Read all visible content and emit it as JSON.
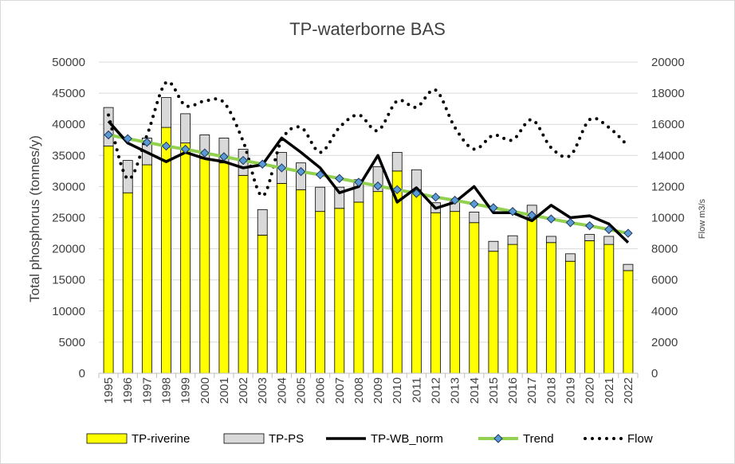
{
  "chart_data": {
    "type": "bar",
    "title": "TP-waterborne BAS",
    "ylabel": "Total phosphorus (tonnes/y)",
    "y2label": "Flow m3/s",
    "ylim": [
      0,
      50000
    ],
    "y2lim": [
      0,
      20000
    ],
    "yticks": [
      "0",
      "5000",
      "10000",
      "15000",
      "20000",
      "25000",
      "30000",
      "35000",
      "40000",
      "45000",
      "50000"
    ],
    "y2ticks": [
      "0",
      "2000",
      "4000",
      "6000",
      "8000",
      "10000",
      "12000",
      "14000",
      "16000",
      "18000",
      "20000"
    ],
    "grid": "horizontal",
    "legend_position": "bottom",
    "categories": [
      "1995",
      "1996",
      "1997",
      "1998",
      "1999",
      "2000",
      "2001",
      "2002",
      "2003",
      "2004",
      "2005",
      "2006",
      "2007",
      "2008",
      "2009",
      "2010",
      "2011",
      "2012",
      "2013",
      "2014",
      "2015",
      "2016",
      "2017",
      "2018",
      "2019",
      "2020",
      "2021",
      "2022"
    ],
    "series": [
      {
        "name": "TP-riverine",
        "kind": "stacked-bar",
        "color": "#ffff00",
        "values": [
          36500,
          29000,
          33500,
          39500,
          37000,
          34500,
          33800,
          31800,
          22200,
          30500,
          29500,
          26000,
          26500,
          27500,
          29200,
          32500,
          29500,
          25800,
          26000,
          24200,
          19600,
          20700,
          25000,
          21000,
          18000,
          21300,
          20700,
          16500
        ]
      },
      {
        "name": "TP-PS",
        "kind": "stacked-bar",
        "color": "#d9d9d9",
        "values": [
          6200,
          5200,
          4300,
          4800,
          4700,
          3800,
          4000,
          4200,
          4100,
          5000,
          4300,
          3900,
          3400,
          3600,
          4000,
          3000,
          3200,
          1600,
          1800,
          1700,
          1600,
          1400,
          2000,
          1000,
          1200,
          1000,
          1300,
          1000
        ]
      },
      {
        "name": "TP-WB_norm",
        "kind": "line",
        "color": "#000000",
        "values": [
          40500,
          37000,
          35500,
          34000,
          35500,
          34500,
          34000,
          33000,
          33500,
          37800,
          35500,
          33000,
          29000,
          30000,
          35000,
          27500,
          29800,
          26500,
          27500,
          30000,
          25800,
          25800,
          24500,
          27000,
          25000,
          25300,
          24000,
          21000
        ]
      },
      {
        "name": "Trend",
        "kind": "line-marker",
        "color": "#92d050",
        "marker_color": "#5b9bd5",
        "values": [
          38300,
          37700,
          37100,
          36500,
          36000,
          35400,
          34800,
          34200,
          33600,
          33000,
          32400,
          31900,
          31300,
          30700,
          30100,
          29500,
          28900,
          28300,
          27800,
          27200,
          26600,
          26000,
          25400,
          24800,
          24200,
          23700,
          23100,
          22500
        ]
      },
      {
        "name": "Flow",
        "kind": "dotted-line",
        "axis": "secondary",
        "color": "#000000",
        "values": [
          16600,
          12500,
          15300,
          18700,
          17200,
          17500,
          17400,
          14900,
          11400,
          15000,
          15800,
          14200,
          15800,
          16600,
          15600,
          17500,
          17100,
          18200,
          15800,
          14400,
          15300,
          15000,
          16300,
          14500,
          14000,
          16300,
          15800,
          14600
        ]
      }
    ]
  }
}
